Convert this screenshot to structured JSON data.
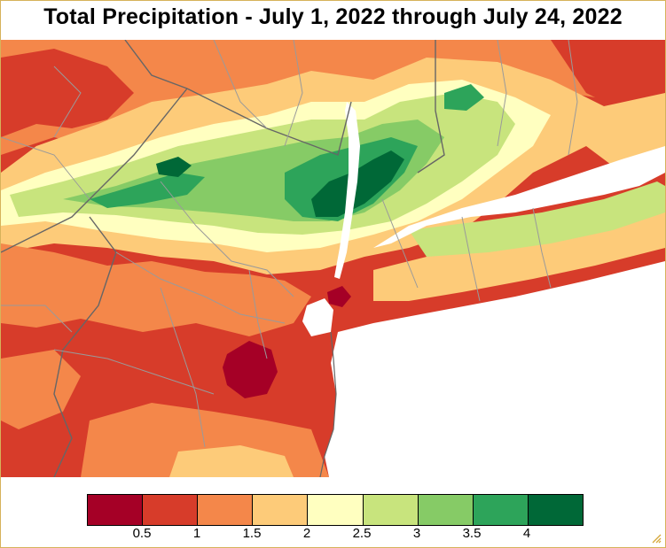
{
  "title": "Total Precipitation - July 1, 2022 through July 24, 2022",
  "map": {
    "region": "New York City metro, northern New Jersey, Hudson Valley, Connecticut and Long Island",
    "colors": {
      "water": "#ffffff",
      "boundary_state": "#666666",
      "boundary_county": "#9a9a9a"
    }
  },
  "legend": {
    "colors": [
      "#a50026",
      "#d73c2a",
      "#f4874a",
      "#fdcb79",
      "#ffffc0",
      "#c8e47d",
      "#86cb66",
      "#2da45a",
      "#006837"
    ],
    "tick_labels": [
      "0.5",
      "1",
      "1.5",
      "2",
      "2.5",
      "3",
      "3.5",
      "4"
    ]
  },
  "icons": {
    "resize": "resize-grip-icon"
  }
}
